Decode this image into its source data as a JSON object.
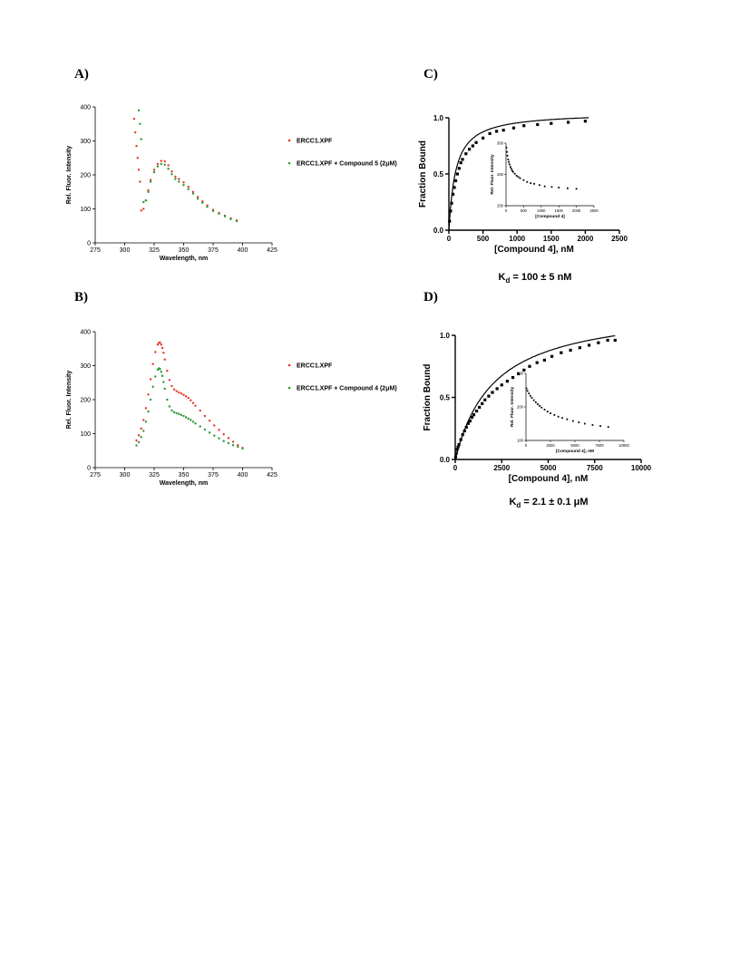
{
  "panels": {
    "A": "A)",
    "B": "B)",
    "C": "C)",
    "D": "D)"
  },
  "kd": {
    "C": {
      "prefix": "K",
      "sub": "d",
      "text": " = 100 ± 5 nM"
    },
    "D": {
      "prefix": "K",
      "sub": "d",
      "text": " = 2.1 ± 0.1 μM"
    }
  },
  "colors": {
    "red": "#e8382d",
    "green": "#2e9a35",
    "black": "#000000"
  },
  "chart_data": [
    {
      "id": "A",
      "type": "scatter",
      "xlabel": "Wavelength, nm",
      "ylabel": "Rel. Fluor. Intensity",
      "xlim": [
        275,
        425
      ],
      "ylim": [
        0,
        400
      ],
      "xticks": [
        275,
        300,
        325,
        350,
        375,
        400,
        425
      ],
      "yticks": [
        0,
        100,
        200,
        300,
        400
      ],
      "legend": "right",
      "series": [
        {
          "name": "ERCC1.XPF",
          "color": "#e8382d",
          "x": [
            308,
            309,
            310,
            311,
            312,
            313,
            314,
            316,
            318,
            320,
            322,
            325,
            328,
            331,
            334,
            337,
            340,
            343,
            346,
            350,
            354,
            358,
            362,
            366,
            370,
            375,
            380,
            385,
            390,
            395
          ],
          "y": [
            365,
            325,
            285,
            250,
            215,
            180,
            95,
            100,
            125,
            155,
            185,
            215,
            232,
            241,
            240,
            228,
            210,
            195,
            188,
            178,
            165,
            150,
            135,
            122,
            110,
            97,
            88,
            80,
            72,
            66
          ]
        },
        {
          "name": "ERCC1.XPF + Compound 5 (2μM)",
          "color": "#2e9a35",
          "x": [
            312,
            313,
            314,
            316,
            318,
            320,
            322,
            325,
            328,
            331,
            334,
            337,
            340,
            343,
            346,
            350,
            354,
            358,
            362,
            366,
            370,
            375,
            380,
            385,
            390,
            395
          ],
          "y": [
            390,
            350,
            305,
            120,
            125,
            150,
            180,
            208,
            225,
            232,
            230,
            218,
            202,
            188,
            180,
            170,
            158,
            145,
            130,
            118,
            106,
            94,
            86,
            78,
            70,
            64
          ]
        }
      ]
    },
    {
      "id": "B",
      "type": "scatter",
      "xlabel": "Wavelength, nm",
      "ylabel": "Rel. Fluor. Intensity",
      "xlim": [
        275,
        425
      ],
      "ylim": [
        0,
        400
      ],
      "xticks": [
        275,
        300,
        325,
        350,
        375,
        400,
        425
      ],
      "yticks": [
        0,
        100,
        200,
        300,
        400
      ],
      "legend": "right",
      "series": [
        {
          "name": "ERCC1.XPF",
          "color": "#e8382d",
          "x": [
            310,
            312,
            314,
            316,
            318,
            320,
            322,
            324,
            326,
            328,
            329,
            330,
            331,
            332,
            333,
            334,
            336,
            338,
            340,
            342,
            344,
            346,
            348,
            350,
            352,
            354,
            356,
            358,
            360,
            364,
            368,
            372,
            376,
            380,
            384,
            388,
            392,
            396,
            400
          ],
          "y": [
            80,
            95,
            115,
            140,
            175,
            215,
            260,
            305,
            340,
            362,
            367,
            368,
            362,
            352,
            338,
            318,
            285,
            258,
            240,
            230,
            225,
            221,
            218,
            214,
            210,
            205,
            198,
            190,
            182,
            168,
            152,
            138,
            124,
            111,
            98,
            87,
            76,
            66,
            58
          ]
        },
        {
          "name": "ERCC1.XPF + Compound 4 (2μM)",
          "color": "#2e9a35",
          "x": [
            310,
            312,
            314,
            316,
            318,
            320,
            322,
            324,
            326,
            328,
            329,
            330,
            331,
            332,
            333,
            334,
            336,
            338,
            340,
            342,
            344,
            346,
            348,
            350,
            352,
            354,
            356,
            358,
            360,
            364,
            368,
            372,
            376,
            380,
            384,
            388,
            392,
            396,
            400
          ],
          "y": [
            65,
            75,
            90,
            108,
            135,
            165,
            200,
            238,
            268,
            288,
            292,
            290,
            282,
            270,
            252,
            232,
            200,
            180,
            168,
            163,
            160,
            158,
            155,
            152,
            148,
            144,
            140,
            135,
            130,
            121,
            112,
            103,
            94,
            86,
            78,
            72,
            66,
            61,
            56
          ]
        }
      ]
    },
    {
      "id": "C",
      "type": "scatter",
      "xlabel": "[Compound 4], nM",
      "ylabel": "Fraction Bound",
      "xlim": [
        0,
        2500
      ],
      "ylim": [
        0,
        1.0
      ],
      "xticks": [
        0,
        500,
        1000,
        1500,
        2000,
        2500
      ],
      "yticks": [
        0.0,
        0.5,
        1.0
      ],
      "fit": {
        "model": "one-site",
        "bmax": 1.05,
        "kd": 100
      },
      "series": [
        {
          "name": "",
          "color": "#000000",
          "x": [
            10,
            25,
            40,
            60,
            80,
            100,
            125,
            150,
            175,
            200,
            250,
            300,
            350,
            400,
            500,
            600,
            700,
            800,
            950,
            1100,
            1300,
            1500,
            1750,
            2000
          ],
          "y": [
            0.08,
            0.17,
            0.24,
            0.32,
            0.38,
            0.44,
            0.5,
            0.55,
            0.6,
            0.63,
            0.68,
            0.72,
            0.75,
            0.78,
            0.82,
            0.86,
            0.88,
            0.89,
            0.91,
            0.93,
            0.94,
            0.95,
            0.96,
            0.97
          ]
        }
      ],
      "inset": {
        "xlabel": "[Compound 4]",
        "ylabel": "Rel. Fluor. Intensity",
        "xlim": [
          0,
          2500
        ],
        "ylim": [
          200,
          300
        ],
        "xticks": [
          0,
          500,
          1000,
          1500,
          2000,
          2500
        ],
        "yticks": [
          200,
          250,
          300
        ],
        "x": [
          10,
          25,
          40,
          60,
          80,
          100,
          125,
          150,
          175,
          200,
          250,
          300,
          350,
          400,
          500,
          600,
          700,
          800,
          950,
          1100,
          1300,
          1500,
          1750,
          2000
        ],
        "y": [
          293,
          286,
          280,
          274,
          270,
          266,
          262,
          259,
          256,
          254,
          251,
          248,
          246,
          244,
          241,
          238,
          236,
          235,
          233,
          231,
          230,
          229,
          228,
          227
        ]
      }
    },
    {
      "id": "D",
      "type": "scatter",
      "xlabel": "[Compound 4], nM",
      "ylabel": "Fraction Bound",
      "xlim": [
        0,
        10000
      ],
      "ylim": [
        0,
        1.0
      ],
      "xticks": [
        0,
        2500,
        5000,
        7500,
        10000
      ],
      "yticks": [
        0.0,
        0.5,
        1.0
      ],
      "fit": {
        "model": "one-site",
        "bmax": 1.24,
        "kd": 2100
      },
      "series": [
        {
          "name": "",
          "color": "#000000",
          "x": [
            20,
            60,
            100,
            150,
            200,
            300,
            400,
            500,
            600,
            700,
            800,
            900,
            1000,
            1150,
            1300,
            1450,
            1600,
            1800,
            2000,
            2250,
            2500,
            2800,
            3100,
            3400,
            3700,
            4000,
            4400,
            4800,
            5200,
            5700,
            6200,
            6700,
            7200,
            7700,
            8200,
            8600
          ],
          "y": [
            0.02,
            0.05,
            0.08,
            0.1,
            0.12,
            0.16,
            0.2,
            0.23,
            0.26,
            0.29,
            0.31,
            0.34,
            0.36,
            0.39,
            0.42,
            0.45,
            0.48,
            0.51,
            0.54,
            0.57,
            0.6,
            0.63,
            0.66,
            0.69,
            0.72,
            0.75,
            0.78,
            0.8,
            0.83,
            0.86,
            0.88,
            0.9,
            0.92,
            0.94,
            0.96,
            0.96
          ]
        }
      ],
      "inset": {
        "xlabel": "[Compound 4], nM",
        "ylabel": "Rel. Fluor. Intensity",
        "xlim": [
          0,
          10000
        ],
        "ylim": [
          100,
          300
        ],
        "xticks": [
          0,
          2500,
          5000,
          7500,
          10000
        ],
        "yticks": [
          100,
          200,
          300
        ],
        "x": [
          50,
          150,
          300,
          450,
          600,
          800,
          1000,
          1200,
          1400,
          1600,
          1900,
          2200,
          2500,
          2900,
          3300,
          3700,
          4200,
          4800,
          5400,
          6000,
          6800,
          7600,
          8400
        ],
        "y": [
          255,
          248,
          240,
          233,
          227,
          220,
          214,
          208,
          203,
          198,
          192,
          186,
          181,
          176,
          171,
          167,
          163,
          158,
          154,
          150,
          146,
          143,
          140
        ]
      }
    }
  ]
}
